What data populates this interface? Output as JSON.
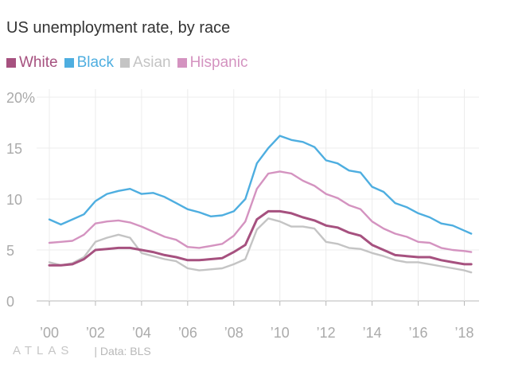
{
  "title": "US unemployment rate, by race",
  "colors": {
    "white": "#a6517f",
    "black": "#4eaee0",
    "asian": "#c4c4c4",
    "hispanic": "#d493c0",
    "grid": "#ececec",
    "axis": "#b8b8b8"
  },
  "footer": {
    "brand": "ATLAS",
    "source": "| Data: BLS"
  },
  "chart_data": {
    "type": "line",
    "title": "US unemployment rate, by race",
    "xlabel": "",
    "ylabel": "",
    "ylim": [
      0,
      20
    ],
    "xlim": [
      2000,
      2018.5
    ],
    "y_ticks": [
      {
        "value": 0,
        "label": "0"
      },
      {
        "value": 5,
        "label": "5"
      },
      {
        "value": 10,
        "label": "10"
      },
      {
        "value": 15,
        "label": "15"
      },
      {
        "value": 20,
        "label": "20%"
      }
    ],
    "x_ticks": [
      {
        "value": 2000,
        "label": "’00"
      },
      {
        "value": 2002,
        "label": "’02"
      },
      {
        "value": 2004,
        "label": "’04"
      },
      {
        "value": 2006,
        "label": "’06"
      },
      {
        "value": 2008,
        "label": "’08"
      },
      {
        "value": 2010,
        "label": "’10"
      },
      {
        "value": 2012,
        "label": "’12"
      },
      {
        "value": 2014,
        "label": "’14"
      },
      {
        "value": 2016,
        "label": "’16"
      },
      {
        "value": 2018,
        "label": "’18"
      }
    ],
    "legend_position": "top-left",
    "series": [
      {
        "name": "White",
        "key": "white",
        "x": [
          2000,
          2000.5,
          2001,
          2001.5,
          2002,
          2002.5,
          2003,
          2003.5,
          2004,
          2004.5,
          2005,
          2005.5,
          2006,
          2006.5,
          2007,
          2007.5,
          2008,
          2008.5,
          2009,
          2009.5,
          2010,
          2010.5,
          2011,
          2011.5,
          2012,
          2012.5,
          2013,
          2013.5,
          2014,
          2014.5,
          2015,
          2015.5,
          2016,
          2016.5,
          2017,
          2017.5,
          2018,
          2018.3
        ],
        "values": [
          3.5,
          3.5,
          3.6,
          4.1,
          5.0,
          5.1,
          5.2,
          5.2,
          5.0,
          4.8,
          4.5,
          4.3,
          4.0,
          4.0,
          4.1,
          4.2,
          4.8,
          5.5,
          8.0,
          8.8,
          8.8,
          8.6,
          8.2,
          7.9,
          7.4,
          7.2,
          6.7,
          6.4,
          5.5,
          5.0,
          4.5,
          4.4,
          4.3,
          4.3,
          4.0,
          3.8,
          3.6,
          3.6
        ]
      },
      {
        "name": "Black",
        "key": "black",
        "x": [
          2000,
          2000.5,
          2001,
          2001.5,
          2002,
          2002.5,
          2003,
          2003.5,
          2004,
          2004.5,
          2005,
          2005.5,
          2006,
          2006.5,
          2007,
          2007.5,
          2008,
          2008.5,
          2009,
          2009.5,
          2010,
          2010.5,
          2011,
          2011.5,
          2012,
          2012.5,
          2013,
          2013.5,
          2014,
          2014.5,
          2015,
          2015.5,
          2016,
          2016.5,
          2017,
          2017.5,
          2018,
          2018.3
        ],
        "values": [
          8.0,
          7.5,
          8.0,
          8.5,
          9.8,
          10.5,
          10.8,
          11.0,
          10.5,
          10.6,
          10.2,
          9.6,
          9.0,
          8.7,
          8.3,
          8.4,
          8.8,
          10.0,
          13.5,
          15.0,
          16.2,
          15.8,
          15.6,
          15.1,
          13.8,
          13.5,
          12.8,
          12.6,
          11.2,
          10.7,
          9.6,
          9.2,
          8.6,
          8.2,
          7.6,
          7.4,
          6.9,
          6.6
        ]
      },
      {
        "name": "Asian",
        "key": "asian",
        "x": [
          2000,
          2000.5,
          2001,
          2001.5,
          2002,
          2002.5,
          2003,
          2003.5,
          2004,
          2004.5,
          2005,
          2005.5,
          2006,
          2006.5,
          2007,
          2007.5,
          2008,
          2008.5,
          2009,
          2009.5,
          2010,
          2010.5,
          2011,
          2011.5,
          2012,
          2012.5,
          2013,
          2013.5,
          2014,
          2014.5,
          2015,
          2015.5,
          2016,
          2016.5,
          2017,
          2017.5,
          2018,
          2018.3
        ],
        "values": [
          3.8,
          3.5,
          3.7,
          4.3,
          5.8,
          6.2,
          6.5,
          6.2,
          4.7,
          4.4,
          4.1,
          3.9,
          3.2,
          3.0,
          3.1,
          3.2,
          3.6,
          4.1,
          7.0,
          8.1,
          7.8,
          7.3,
          7.3,
          7.1,
          5.8,
          5.6,
          5.2,
          5.1,
          4.7,
          4.4,
          4.0,
          3.8,
          3.8,
          3.6,
          3.4,
          3.2,
          3.0,
          2.8
        ]
      },
      {
        "name": "Hispanic",
        "key": "hispanic",
        "x": [
          2000,
          2000.5,
          2001,
          2001.5,
          2002,
          2002.5,
          2003,
          2003.5,
          2004,
          2004.5,
          2005,
          2005.5,
          2006,
          2006.5,
          2007,
          2007.5,
          2008,
          2008.5,
          2009,
          2009.5,
          2010,
          2010.5,
          2011,
          2011.5,
          2012,
          2012.5,
          2013,
          2013.5,
          2014,
          2014.5,
          2015,
          2015.5,
          2016,
          2016.5,
          2017,
          2017.5,
          2018,
          2018.3
        ],
        "values": [
          5.7,
          5.8,
          5.9,
          6.5,
          7.6,
          7.8,
          7.9,
          7.7,
          7.3,
          6.8,
          6.3,
          6.0,
          5.3,
          5.2,
          5.4,
          5.6,
          6.4,
          7.8,
          11.0,
          12.5,
          12.7,
          12.5,
          11.8,
          11.3,
          10.5,
          10.1,
          9.4,
          9.0,
          7.8,
          7.1,
          6.6,
          6.3,
          5.8,
          5.7,
          5.2,
          5.0,
          4.9,
          4.8
        ]
      }
    ]
  }
}
